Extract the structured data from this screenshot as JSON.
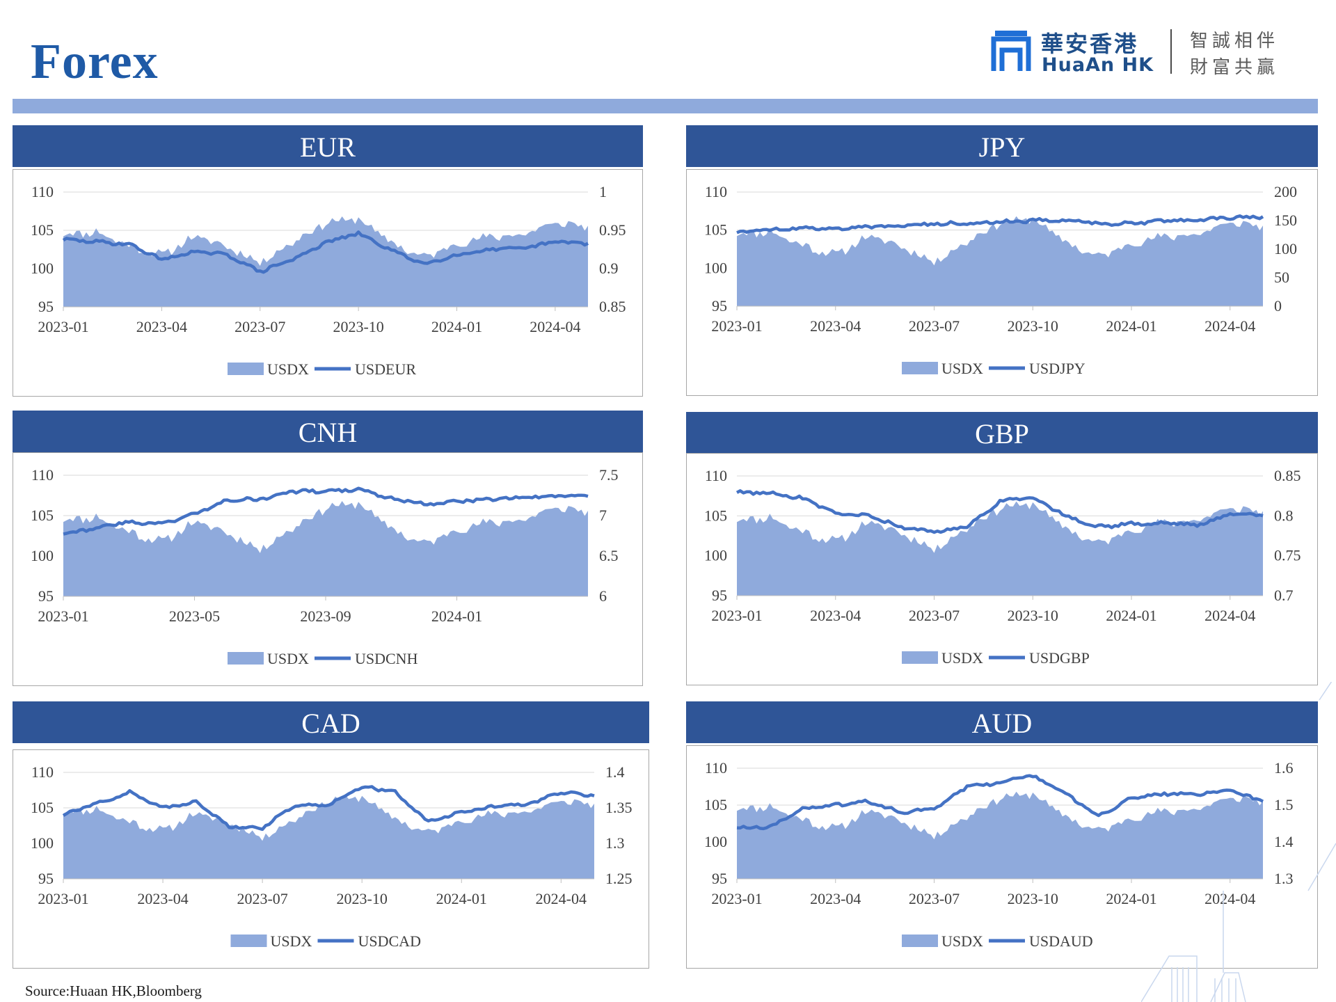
{
  "page": {
    "title": "Forex",
    "source": "Source:Huaan HK,Bloomberg"
  },
  "logo": {
    "name_cn": "華安香港",
    "name_en": "HuaAn HK",
    "slogan_line1": "智誠相伴",
    "slogan_line2": "財富共贏"
  },
  "colors": {
    "header_bg": "#2f5597",
    "band": "#8faadc",
    "area_fill": "#8faadc",
    "line": "#4472c4",
    "title": "#1f5aa6"
  },
  "usdx": {
    "x": [
      "2023-01",
      "2023-02",
      "2023-03",
      "2023-04",
      "2023-05",
      "2023-06",
      "2023-07",
      "2023-08",
      "2023-09",
      "2023-10",
      "2023-11",
      "2023-12",
      "2024-01",
      "2024-02",
      "2024-03",
      "2024-04",
      "2024-05"
    ],
    "values": [
      104.5,
      104.8,
      103.0,
      101.7,
      104.2,
      102.9,
      100.8,
      103.5,
      106.0,
      106.5,
      103.4,
      101.4,
      103.3,
      104.1,
      104.5,
      105.9,
      105.6
    ]
  },
  "chart_data": [
    {
      "type": "line",
      "title": "EUR",
      "x": [
        "2023-01",
        "2023-02",
        "2023-03",
        "2023-04",
        "2023-05",
        "2023-06",
        "2023-07",
        "2023-08",
        "2023-09",
        "2023-10",
        "2023-11",
        "2023-12",
        "2024-01",
        "2024-02",
        "2024-03",
        "2024-04",
        "2024-05"
      ],
      "xticks": [
        "2023-01",
        "2023-04",
        "2023-07",
        "2023-10",
        "2024-01",
        "2024-04"
      ],
      "series": [
        {
          "name": "USDX",
          "kind": "area",
          "axis": "left",
          "ref": "usdx"
        },
        {
          "name": "USDEUR",
          "kind": "line",
          "axis": "right",
          "values": [
            0.938,
            0.935,
            0.932,
            0.912,
            0.922,
            0.918,
            0.896,
            0.912,
            0.934,
            0.946,
            0.924,
            0.906,
            0.918,
            0.925,
            0.926,
            0.935,
            0.933
          ]
        }
      ],
      "ylim_left": [
        95,
        110
      ],
      "yticks_left": [
        "95",
        "100",
        "105",
        "110"
      ],
      "ylim_right": [
        0.85,
        1
      ],
      "yticks_right": [
        "0.85",
        "0.9",
        "0.95",
        "1"
      ],
      "legend": [
        "USDX",
        "USDEUR"
      ],
      "legend_position": "bottom"
    },
    {
      "type": "line",
      "title": "JPY",
      "x": [
        "2023-01",
        "2023-02",
        "2023-03",
        "2023-04",
        "2023-05",
        "2023-06",
        "2023-07",
        "2023-08",
        "2023-09",
        "2023-10",
        "2023-11",
        "2023-12",
        "2024-01",
        "2024-02",
        "2024-03",
        "2024-04",
        "2024-05"
      ],
      "xticks": [
        "2023-01",
        "2023-04",
        "2023-07",
        "2023-10",
        "2024-01",
        "2024-04"
      ],
      "series": [
        {
          "name": "USDX",
          "kind": "area",
          "axis": "left",
          "ref": "usdx"
        },
        {
          "name": "USDJPY",
          "kind": "line",
          "axis": "right",
          "values": [
            130,
            134,
            137,
            136,
            139,
            142,
            144,
            146,
            148,
            150,
            151,
            145,
            145,
            150,
            151,
            155,
            157
          ]
        }
      ],
      "ylim_left": [
        95,
        110
      ],
      "yticks_left": [
        "95",
        "100",
        "105",
        "110"
      ],
      "ylim_right": [
        0,
        200
      ],
      "yticks_right": [
        "0",
        "50",
        "100",
        "150",
        "200"
      ],
      "legend": [
        "USDX",
        "USDJPY"
      ],
      "legend_position": "bottom"
    },
    {
      "type": "line",
      "title": "CNH",
      "x": [
        "2023-01",
        "2023-02",
        "2023-03",
        "2023-04",
        "2023-05",
        "2023-06",
        "2023-07",
        "2023-08",
        "2023-09",
        "2023-10",
        "2023-11",
        "2023-12",
        "2024-01",
        "2024-02",
        "2024-03",
        "2024-04",
        "2024-05"
      ],
      "xticks": [
        "2023-01",
        "2023-05",
        "2023-09",
        "2024-01"
      ],
      "series": [
        {
          "name": "USDX",
          "kind": "area",
          "axis": "left",
          "ref": "usdx"
        },
        {
          "name": "USDCNH",
          "kind": "line",
          "axis": "right",
          "values": [
            6.78,
            6.85,
            6.92,
            6.9,
            7.02,
            7.2,
            7.2,
            7.3,
            7.3,
            7.32,
            7.22,
            7.14,
            7.18,
            7.2,
            7.22,
            7.24,
            7.24
          ]
        }
      ],
      "ylim_left": [
        95,
        110
      ],
      "yticks_left": [
        "95",
        "100",
        "105",
        "110"
      ],
      "ylim_right": [
        6,
        7.5
      ],
      "yticks_right": [
        "6",
        "6.5",
        "7",
        "7.5"
      ],
      "legend": [
        "USDX",
        "USDCNH"
      ],
      "legend_position": "bottom"
    },
    {
      "type": "line",
      "title": "GBP",
      "x": [
        "2023-01",
        "2023-02",
        "2023-03",
        "2023-04",
        "2023-05",
        "2023-06",
        "2023-07",
        "2023-08",
        "2023-09",
        "2023-10",
        "2023-11",
        "2023-12",
        "2024-01",
        "2024-02",
        "2024-03",
        "2024-04",
        "2024-05"
      ],
      "xticks": [
        "2023-01",
        "2023-04",
        "2023-07",
        "2023-10",
        "2024-01",
        "2024-04"
      ],
      "series": [
        {
          "name": "USDX",
          "kind": "area",
          "axis": "left",
          "ref": "usdx"
        },
        {
          "name": "USDGBP",
          "kind": "line",
          "axis": "right",
          "values": [
            0.83,
            0.828,
            0.822,
            0.802,
            0.8,
            0.786,
            0.78,
            0.786,
            0.818,
            0.824,
            0.8,
            0.786,
            0.79,
            0.791,
            0.788,
            0.802,
            0.8
          ]
        }
      ],
      "ylim_left": [
        95,
        110
      ],
      "yticks_left": [
        "95",
        "100",
        "105",
        "110"
      ],
      "ylim_right": [
        0.7,
        0.85
      ],
      "yticks_right": [
        "0.7",
        "0.75",
        "0.8",
        "0.85"
      ],
      "legend": [
        "USDX",
        "USDGBP"
      ],
      "legend_position": "bottom"
    },
    {
      "type": "line",
      "title": "CAD",
      "x": [
        "2023-01",
        "2023-02",
        "2023-03",
        "2023-04",
        "2023-05",
        "2023-06",
        "2023-07",
        "2023-08",
        "2023-09",
        "2023-10",
        "2023-11",
        "2023-12",
        "2024-01",
        "2024-02",
        "2024-03",
        "2024-04",
        "2024-05"
      ],
      "xticks": [
        "2023-01",
        "2023-04",
        "2023-07",
        "2023-10",
        "2024-01",
        "2024-04"
      ],
      "series": [
        {
          "name": "USDX",
          "kind": "area",
          "axis": "left",
          "ref": "usdx"
        },
        {
          "name": "USDCAD",
          "kind": "line",
          "axis": "right",
          "values": [
            1.34,
            1.356,
            1.372,
            1.35,
            1.358,
            1.324,
            1.322,
            1.354,
            1.355,
            1.38,
            1.372,
            1.33,
            1.344,
            1.352,
            1.355,
            1.372,
            1.367
          ]
        }
      ],
      "ylim_left": [
        95,
        110
      ],
      "yticks_left": [
        "95",
        "100",
        "105",
        "110"
      ],
      "ylim_right": [
        1.25,
        1.4
      ],
      "yticks_right": [
        "1.25",
        "1.3",
        "1.35",
        "1.4"
      ],
      "legend": [
        "USDX",
        "USDCAD"
      ],
      "legend_position": "bottom"
    },
    {
      "type": "line",
      "title": "AUD",
      "x": [
        "2023-01",
        "2023-02",
        "2023-03",
        "2023-04",
        "2023-05",
        "2023-06",
        "2023-07",
        "2023-08",
        "2023-09",
        "2023-10",
        "2023-11",
        "2023-12",
        "2024-01",
        "2024-02",
        "2024-03",
        "2024-04",
        "2024-05"
      ],
      "xticks": [
        "2023-01",
        "2023-04",
        "2023-07",
        "2023-10",
        "2024-01",
        "2024-04"
      ],
      "series": [
        {
          "name": "USDX",
          "kind": "area",
          "axis": "left",
          "ref": "usdx"
        },
        {
          "name": "USDAUD",
          "kind": "line",
          "axis": "right",
          "values": [
            1.44,
            1.44,
            1.49,
            1.5,
            1.51,
            1.48,
            1.49,
            1.55,
            1.56,
            1.58,
            1.53,
            1.47,
            1.52,
            1.53,
            1.53,
            1.54,
            1.51
          ]
        }
      ],
      "ylim_left": [
        95,
        110
      ],
      "yticks_left": [
        "95",
        "100",
        "105",
        "110"
      ],
      "ylim_right": [
        1.3,
        1.6
      ],
      "yticks_right": [
        "1.3",
        "1.4",
        "1.5",
        "1.6"
      ],
      "legend": [
        "USDX",
        "USDAUD"
      ],
      "legend_position": "bottom"
    }
  ]
}
